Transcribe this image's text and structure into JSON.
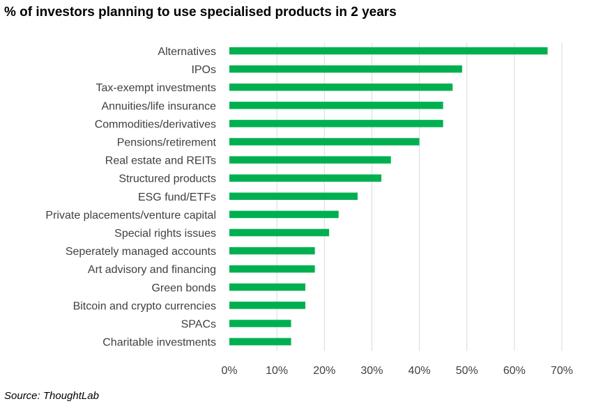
{
  "title": "% of investors planning to use specialised products in 2 years",
  "source": "Source: ThoughtLab",
  "chart_data": {
    "type": "bar",
    "orientation": "horizontal",
    "categories": [
      "Alternatives",
      "IPOs",
      "Tax-exempt investments",
      "Annuities/life insurance",
      "Commodities/derivatives",
      "Pensions/retirement",
      "Real estate and REITs",
      "Structured products",
      "ESG fund/ETFs",
      "Private placements/venture capital",
      "Special rights issues",
      "Seperately managed accounts",
      "Art advisory and financing",
      "Green bonds",
      "Bitcoin and crypto currencies",
      "SPACs",
      "Charitable investments"
    ],
    "values": [
      67,
      49,
      47,
      45,
      45,
      40,
      34,
      32,
      27,
      23,
      21,
      18,
      18,
      16,
      16,
      13,
      13
    ],
    "xlim": [
      0,
      70
    ],
    "xticks": [
      0,
      10,
      20,
      30,
      40,
      50,
      60,
      70
    ],
    "tick_labels": [
      "0%",
      "10%",
      "20%",
      "30%",
      "40%",
      "50%",
      "60%",
      "70%"
    ],
    "bar_color": "#00b050",
    "grid": true,
    "legend": "none"
  }
}
